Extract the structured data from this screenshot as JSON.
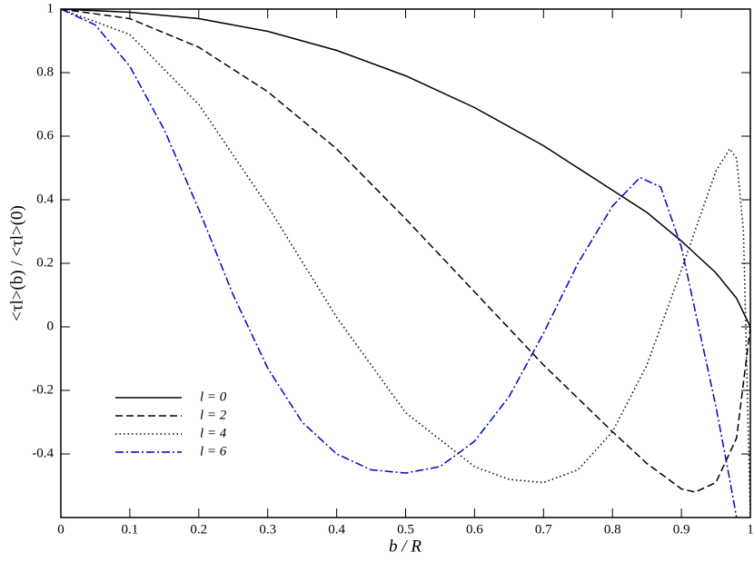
{
  "chart_data": {
    "type": "line",
    "xlabel": "b / R",
    "ylabel": "<τl>(b) / <τl>(0)",
    "xlim": [
      0,
      1
    ],
    "ylim": [
      -0.6,
      1
    ],
    "xticks": [
      0,
      0.1,
      0.2,
      0.3,
      0.4,
      0.5,
      0.6,
      0.7,
      0.8,
      0.9,
      1
    ],
    "yticks": [
      -0.4,
      -0.2,
      0,
      0.2,
      0.4,
      0.6,
      0.8,
      1
    ],
    "legend": "lower left",
    "series": [
      {
        "name": "l = 0",
        "color": "#000000",
        "style": "solid",
        "x": [
          0,
          0.1,
          0.2,
          0.3,
          0.4,
          0.5,
          0.6,
          0.7,
          0.8,
          0.85,
          0.9,
          0.95,
          0.98,
          1
        ],
        "values": [
          1,
          0.99,
          0.97,
          0.93,
          0.87,
          0.79,
          0.69,
          0.57,
          0.43,
          0.36,
          0.27,
          0.17,
          0.09,
          0
        ]
      },
      {
        "name": "l = 2",
        "color": "#000000",
        "style": "dashed",
        "x": [
          0,
          0.1,
          0.2,
          0.3,
          0.4,
          0.5,
          0.6,
          0.7,
          0.8,
          0.85,
          0.9,
          0.92,
          0.95,
          0.98,
          1
        ],
        "values": [
          1,
          0.97,
          0.88,
          0.74,
          0.56,
          0.34,
          0.11,
          -0.12,
          -0.33,
          -0.43,
          -0.51,
          -0.52,
          -0.49,
          -0.35,
          0
        ]
      },
      {
        "name": "l = 4",
        "color": "#000000",
        "style": "dotted",
        "x": [
          0,
          0.1,
          0.2,
          0.3,
          0.4,
          0.5,
          0.6,
          0.65,
          0.7,
          0.75,
          0.8,
          0.85,
          0.9,
          0.95,
          0.97,
          0.98,
          0.99,
          1
        ],
        "values": [
          1,
          0.92,
          0.7,
          0.38,
          0.03,
          -0.27,
          -0.44,
          -0.48,
          -0.49,
          -0.45,
          -0.33,
          -0.12,
          0.18,
          0.49,
          0.56,
          0.53,
          0.3,
          -0.6
        ]
      },
      {
        "name": "l = 6",
        "color": "#0000cc",
        "style": "dashdot",
        "x": [
          0,
          0.05,
          0.1,
          0.15,
          0.2,
          0.25,
          0.3,
          0.35,
          0.4,
          0.45,
          0.5,
          0.55,
          0.6,
          0.65,
          0.7,
          0.75,
          0.8,
          0.84,
          0.87,
          0.9,
          0.93,
          0.95,
          0.97,
          0.98
        ],
        "values": [
          1,
          0.95,
          0.82,
          0.62,
          0.37,
          0.1,
          -0.13,
          -0.3,
          -0.4,
          -0.45,
          -0.46,
          -0.44,
          -0.36,
          -0.22,
          -0.02,
          0.2,
          0.38,
          0.47,
          0.44,
          0.25,
          -0.05,
          -0.25,
          -0.48,
          -0.6
        ]
      }
    ]
  }
}
